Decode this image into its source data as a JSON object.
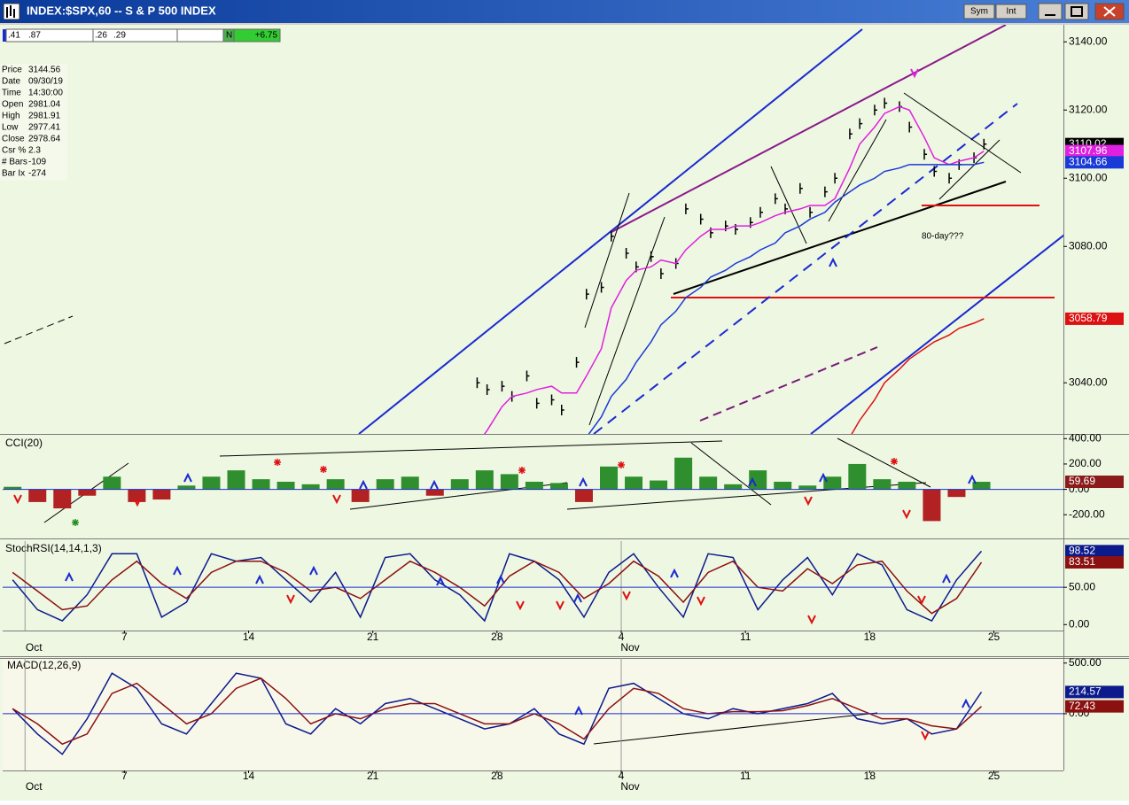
{
  "window": {
    "title": "INDEX:$SPX,60 -- S & P 500 INDEX",
    "buttons": [
      "Sym",
      "Int"
    ]
  },
  "toolbar": {
    "fields": [
      ".41",
      ".87",
      ".26",
      ".29"
    ],
    "flag": "N",
    "change": "+6.75"
  },
  "info": {
    "rows": [
      [
        "Price",
        "3144.56"
      ],
      [
        "Date",
        "09/30/19"
      ],
      [
        "Time",
        "14:30:00"
      ],
      [
        "Open",
        "2981.04"
      ],
      [
        "High",
        "2981.91"
      ],
      [
        "Low",
        "2977.41"
      ],
      [
        "Close",
        "2978.64"
      ],
      [
        "Csr %",
        "2.3"
      ],
      [
        "# Bars",
        "-109"
      ],
      [
        "Bar Ix",
        "-274"
      ]
    ]
  },
  "chart_data": [
    {
      "type": "line",
      "xlim": [
        -0.9,
        41.8
      ],
      "ylim": [
        3025,
        3145
      ],
      "yticks": [
        {
          "value": 3040,
          "label": "3040.00"
        },
        {
          "value": 3080,
          "label": "3080.00"
        },
        {
          "value": 3100,
          "label": "3100.00"
        },
        {
          "value": 3120,
          "label": "3120.00"
        },
        {
          "value": 3140,
          "label": "3140.00"
        }
      ],
      "x": [
        18.2,
        18.6,
        19.2,
        19.6,
        20.2,
        20.6,
        21.2,
        21.6,
        22.2,
        22.6,
        23.2,
        23.6,
        24.2,
        24.6,
        25.2,
        25.6,
        26.2,
        26.6,
        27.2,
        27.6,
        28.2,
        28.6,
        29.2,
        29.6,
        30.2,
        30.6,
        31.2,
        31.6,
        32.2,
        32.6,
        33.2,
        33.6,
        34.2,
        34.6,
        35.2,
        35.6,
        36.2,
        36.6,
        37.2,
        37.6,
        38.2,
        38.6
      ],
      "series": [
        {
          "style": "bars",
          "color": "#000000",
          "values": [
            3040,
            3038,
            3039,
            3036,
            3042,
            3034,
            3035,
            3032,
            3046,
            3066,
            3068,
            3083,
            3078,
            3074,
            3077,
            3072,
            3075,
            3091,
            3088,
            3084,
            3086,
            3085,
            3087,
            3090,
            3094,
            3091,
            3097,
            3090,
            3096,
            3100,
            3113,
            3116,
            3120,
            3122,
            3121,
            3115,
            3107,
            3102,
            3100,
            3104,
            3106,
            3110
          ],
          "last_value": 3110.02
        },
        {
          "style": "line",
          "color": "#e020e0",
          "values": [
            3022,
            3026,
            3033,
            3036,
            3037,
            3038,
            3039,
            3037,
            3037,
            3042,
            3050,
            3062,
            3070,
            3073,
            3074,
            3076,
            3075,
            3079,
            3083,
            3085,
            3085,
            3086,
            3086,
            3087,
            3089,
            3090,
            3091,
            3092,
            3092,
            3094,
            3103,
            3110,
            3115,
            3119,
            3121,
            3120,
            3112,
            3106,
            3104,
            3105,
            3106,
            3107.96
          ],
          "last_value": 3107.96
        },
        {
          "style": "line",
          "color": "#1a3ad8",
          "values": [
            null,
            null,
            null,
            null,
            null,
            null,
            null,
            null,
            null,
            3024,
            3030,
            3036,
            3041,
            3046,
            3052,
            3057,
            3061,
            3065,
            3068,
            3071,
            3073,
            3075,
            3077,
            3079,
            3081,
            3084,
            3086,
            3088,
            3090,
            3093,
            3096,
            3098,
            3100,
            3102,
            3103,
            3104,
            3104,
            3104,
            3104,
            3104,
            3104,
            3104.66
          ],
          "last_value": 3104.66
        },
        {
          "style": "line",
          "color": "#dd1111",
          "values": [
            null,
            null,
            null,
            null,
            null,
            null,
            null,
            null,
            null,
            null,
            null,
            null,
            null,
            null,
            null,
            null,
            null,
            null,
            null,
            null,
            null,
            null,
            null,
            null,
            null,
            null,
            null,
            null,
            null,
            null,
            3024,
            3029,
            3035,
            3040,
            3044,
            3047,
            3050,
            3052,
            3054,
            3056,
            3057.5,
            3058.79
          ],
          "last_value": 3058.79
        }
      ],
      "annotations": [
        "80-day???"
      ]
    },
    {
      "type": "bar",
      "title": "CCI(20)",
      "xlim": [
        -0.9,
        41.8
      ],
      "ylim": [
        -380,
        430
      ],
      "yticks": [
        {
          "value": 400,
          "label": "400.00"
        },
        {
          "value": 200,
          "label": "200.00"
        },
        {
          "value": 0,
          "label": "0.00"
        },
        {
          "value": -200,
          "label": "-200.00"
        }
      ],
      "ref_line": 0,
      "ref_color": "#1a2ad0",
      "x": [
        -0.5,
        0.5,
        1.5,
        2.5,
        3.5,
        4.5,
        5.5,
        6.5,
        7.5,
        8.5,
        9.5,
        10.5,
        11.5,
        12.5,
        13.5,
        14.5,
        15.5,
        16.5,
        17.5,
        18.5,
        19.5,
        20.5,
        21.5,
        22.5,
        23.5,
        24.5,
        25.5,
        26.5,
        27.5,
        28.5,
        29.5,
        30.5,
        31.5,
        32.5,
        33.5,
        34.5,
        35.5,
        36.5,
        37.5,
        38.5
      ],
      "series": [
        {
          "color": "#2f8f2f",
          "negative_color": "#b22222",
          "label_color": "#8b1a1a",
          "values": [
            20,
            -100,
            -150,
            -50,
            100,
            -100,
            -80,
            30,
            100,
            150,
            80,
            60,
            40,
            80,
            -100,
            80,
            100,
            -50,
            80,
            150,
            120,
            60,
            50,
            -100,
            180,
            100,
            70,
            250,
            100,
            40,
            150,
            60,
            30,
            100,
            200,
            80,
            60,
            -250,
            -60,
            59.69
          ],
          "last_value": 59.69
        }
      ]
    },
    {
      "type": "line",
      "title": "StochRSI(14,14,1,3)",
      "xlim": [
        -0.9,
        41.8
      ],
      "ylim": [
        -8,
        112
      ],
      "yticks": [
        {
          "value": 50,
          "label": "50.00"
        },
        {
          "value": 0,
          "label": "0.00"
        }
      ],
      "ref_line": 50,
      "ref_color": "#1a2ad0",
      "xticks": [
        {
          "value": 4,
          "label": "7"
        },
        {
          "value": 9,
          "label": "14"
        },
        {
          "value": 14,
          "label": "21"
        },
        {
          "value": 19,
          "label": "28"
        },
        {
          "value": 24,
          "label": "4"
        },
        {
          "value": 29,
          "label": "11"
        },
        {
          "value": 34,
          "label": "18"
        },
        {
          "value": 39,
          "label": "25"
        }
      ],
      "month_ticks": [
        {
          "value": 0,
          "label": "Oct"
        },
        {
          "value": 24,
          "label": "Nov"
        }
      ],
      "x": [
        -0.5,
        0.5,
        1.5,
        2.5,
        3.5,
        4.5,
        5.5,
        6.5,
        7.5,
        8.5,
        9.5,
        10.5,
        11.5,
        12.5,
        13.5,
        14.5,
        15.5,
        16.5,
        17.5,
        18.5,
        19.5,
        20.5,
        21.5,
        22.5,
        23.5,
        24.5,
        25.5,
        26.5,
        27.5,
        28.5,
        29.5,
        30.5,
        31.5,
        32.5,
        33.5,
        34.5,
        35.5,
        36.5,
        37.5,
        38.5
      ],
      "series": [
        {
          "style": "line",
          "color": "#0c1a8c",
          "values": [
            60,
            20,
            5,
            40,
            95,
            95,
            10,
            30,
            95,
            85,
            90,
            60,
            30,
            70,
            10,
            90,
            95,
            60,
            40,
            5,
            95,
            85,
            60,
            10,
            70,
            95,
            50,
            10,
            95,
            90,
            20,
            60,
            90,
            40,
            95,
            80,
            20,
            5,
            60,
            98.52
          ],
          "last_value": 98.52
        },
        {
          "style": "line",
          "color": "#8b1010",
          "values": [
            70,
            45,
            20,
            25,
            60,
            85,
            55,
            35,
            70,
            85,
            85,
            70,
            45,
            50,
            35,
            60,
            85,
            70,
            50,
            25,
            65,
            85,
            70,
            35,
            55,
            85,
            65,
            30,
            70,
            85,
            50,
            45,
            75,
            55,
            80,
            85,
            45,
            15,
            35,
            83.51
          ],
          "last_value": 83.51
        }
      ]
    },
    {
      "type": "line",
      "title": "MACD(12,26,9)",
      "xlim": [
        -0.9,
        41.8
      ],
      "ylim": [
        -560,
        550
      ],
      "yticks": [
        {
          "value": 500,
          "label": "500.00"
        },
        {
          "value": 0,
          "label": "0.00"
        }
      ],
      "ref_line": 0,
      "ref_color": "#1a2ad0",
      "xticks": [
        {
          "value": 4,
          "label": "7"
        },
        {
          "value": 9,
          "label": "14"
        },
        {
          "value": 14,
          "label": "21"
        },
        {
          "value": 19,
          "label": "28"
        },
        {
          "value": 24,
          "label": "4"
        },
        {
          "value": 29,
          "label": "11"
        },
        {
          "value": 34,
          "label": "18"
        },
        {
          "value": 39,
          "label": "25"
        }
      ],
      "month_ticks": [
        {
          "value": 0,
          "label": "Oct"
        },
        {
          "value": 24,
          "label": "Nov"
        }
      ],
      "x": [
        -0.5,
        0.5,
        1.5,
        2.5,
        3.5,
        4.5,
        5.5,
        6.5,
        7.5,
        8.5,
        9.5,
        10.5,
        11.5,
        12.5,
        13.5,
        14.5,
        15.5,
        16.5,
        17.5,
        18.5,
        19.5,
        20.5,
        21.5,
        22.5,
        23.5,
        24.5,
        25.5,
        26.5,
        27.5,
        28.5,
        29.5,
        30.5,
        31.5,
        32.5,
        33.5,
        34.5,
        35.5,
        36.5,
        37.5,
        38.5
      ],
      "series": [
        {
          "style": "line",
          "color": "#0c1a8c",
          "values": [
            50,
            -200,
            -400,
            -50,
            400,
            250,
            -100,
            -200,
            100,
            400,
            350,
            -100,
            -200,
            50,
            -100,
            100,
            150,
            50,
            -50,
            -150,
            -100,
            50,
            -200,
            -300,
            250,
            300,
            150,
            0,
            -50,
            50,
            0,
            50,
            100,
            200,
            -50,
            -100,
            -50,
            -200,
            -150,
            214.57
          ],
          "last_value": 214.57
        },
        {
          "style": "line",
          "color": "#8b1010",
          "values": [
            50,
            -100,
            -300,
            -200,
            200,
            300,
            100,
            -100,
            0,
            250,
            350,
            150,
            -100,
            0,
            -50,
            50,
            100,
            100,
            0,
            -100,
            -100,
            0,
            -100,
            -250,
            50,
            250,
            200,
            50,
            0,
            20,
            20,
            30,
            80,
            150,
            50,
            -50,
            -50,
            -120,
            -150,
            72.43
          ],
          "last_value": 72.43
        }
      ]
    }
  ]
}
